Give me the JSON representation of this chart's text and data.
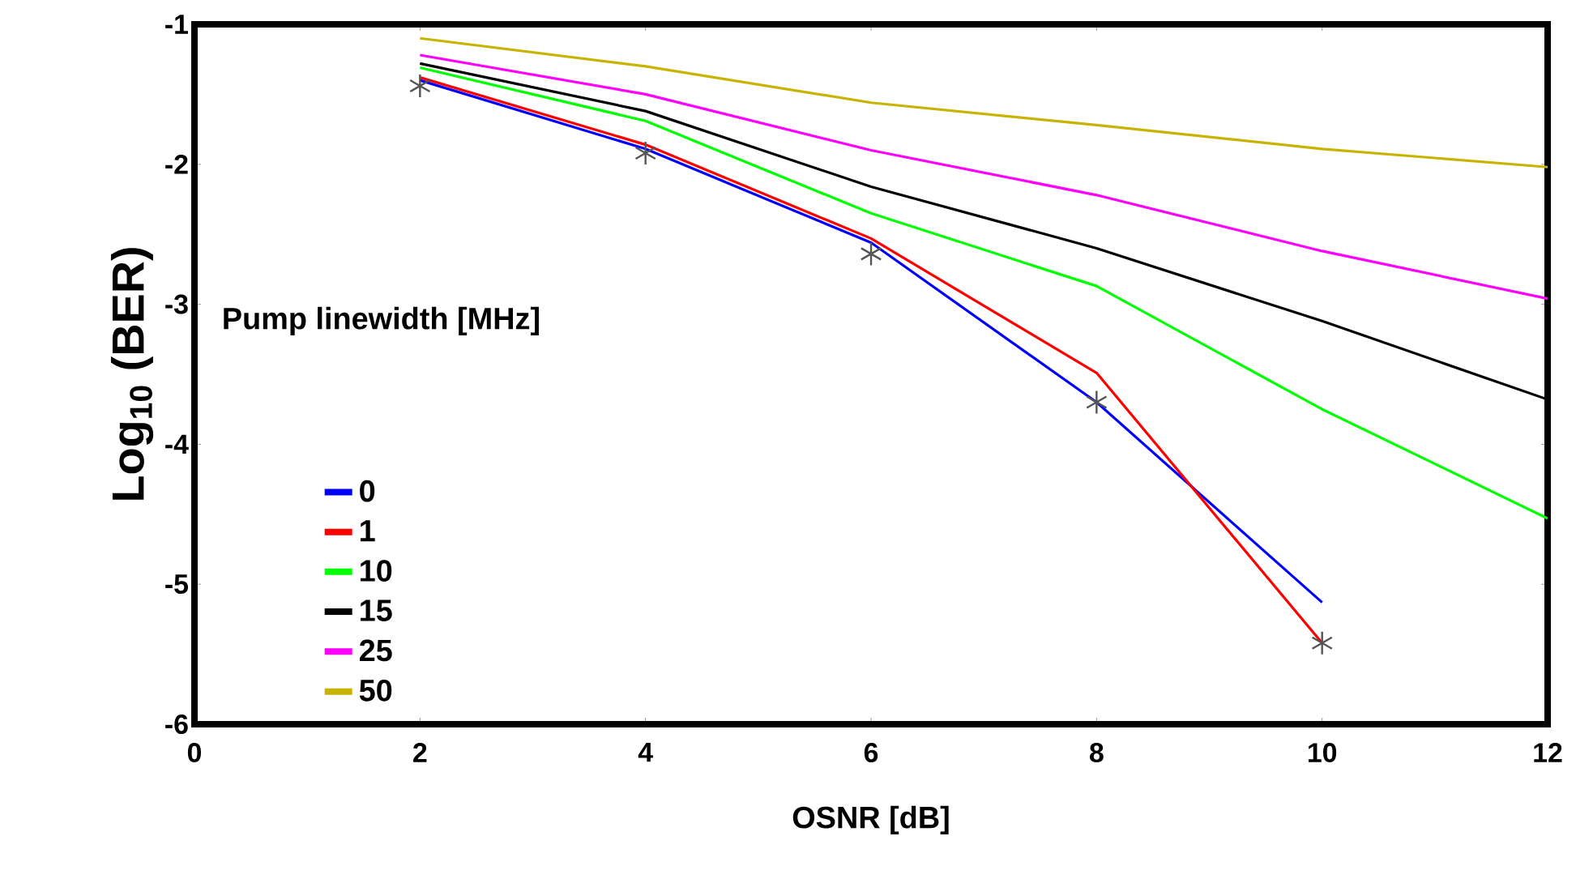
{
  "chart_data": {
    "type": "line",
    "xlabel": "OSNR [dB]",
    "ylabel": "Log$_{10}$ (BER)",
    "legend_title": "Pump linewidth [MHz]",
    "legend": "bottom left",
    "marker": "none",
    "grid": false,
    "xlim": [
      0,
      12
    ],
    "ylim": [
      -6,
      -1
    ],
    "xticks": [
      0,
      2,
      4,
      6,
      8,
      10,
      12
    ],
    "yticks": [
      -6,
      -5,
      -4,
      -3,
      -2,
      -1
    ],
    "series": [
      {
        "name": "0",
        "color": "#0000ff",
        "x": [
          2,
          4,
          6,
          8,
          10
        ],
        "values": [
          -1.4,
          -1.89,
          -2.56,
          -3.7,
          -5.13
        ]
      },
      {
        "name": "1",
        "color": "#ff0000",
        "x": [
          2,
          4,
          6,
          8,
          10
        ],
        "values": [
          -1.38,
          -1.86,
          -2.53,
          -3.49,
          -5.42
        ]
      },
      {
        "name": "10",
        "color": "#00ff00",
        "x": [
          2,
          4,
          6,
          8,
          10,
          12
        ],
        "values": [
          -1.31,
          -1.69,
          -2.35,
          -2.87,
          -3.75,
          -4.53
        ]
      },
      {
        "name": "15",
        "color": "#000000",
        "x": [
          2,
          4,
          6,
          8,
          10,
          12
        ],
        "values": [
          -1.28,
          -1.62,
          -2.16,
          -2.6,
          -3.12,
          -3.68
        ]
      },
      {
        "name": "25",
        "color": "#ff00ff",
        "x": [
          2,
          4,
          6,
          8,
          10,
          12
        ],
        "values": [
          -1.22,
          -1.5,
          -1.9,
          -2.22,
          -2.62,
          -2.96
        ]
      },
      {
        "name": "50",
        "color": "#c8b400",
        "x": [
          2,
          4,
          6,
          8,
          10,
          12
        ],
        "values": [
          -1.1,
          -1.3,
          -1.56,
          -1.72,
          -1.89,
          -2.02
        ]
      },
      {
        "type": "scatter",
        "marker": "cross",
        "color": "#555555",
        "x": [
          2,
          4,
          6,
          8,
          10
        ],
        "values": [
          -1.44,
          -1.92,
          -2.64,
          -3.7,
          -5.42
        ]
      }
    ]
  }
}
